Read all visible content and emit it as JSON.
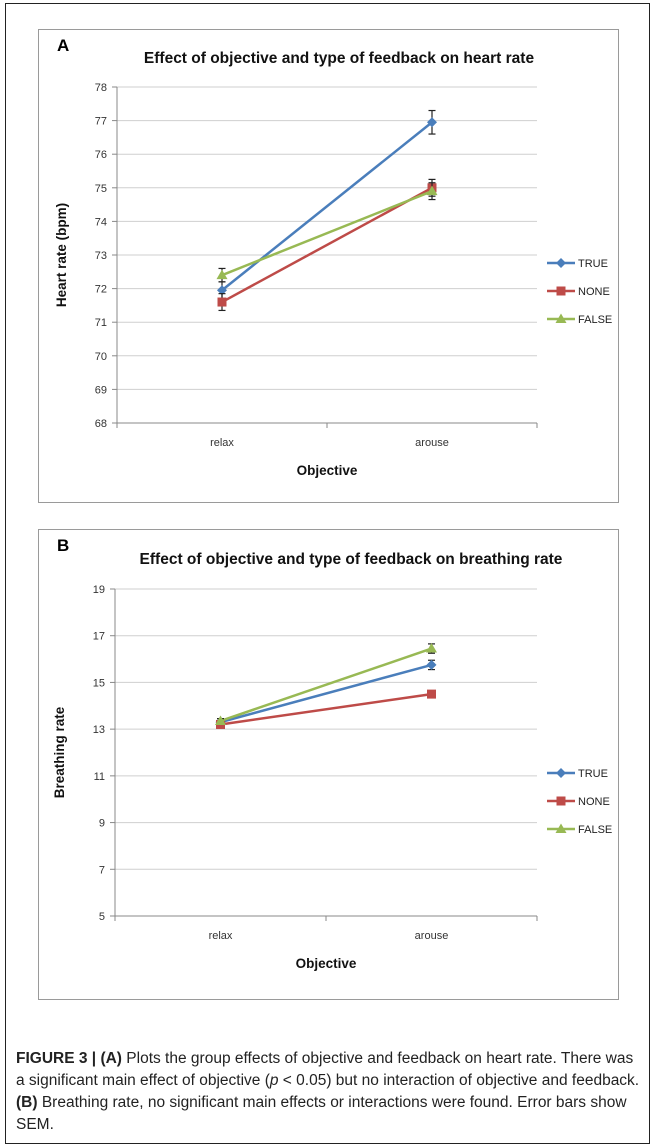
{
  "caption": {
    "label": "FIGURE 3 |",
    "a_tag": "(A)",
    "a_text_1": "Plots the group effects of objective and feedback on heart rate. There was a significant main effect of objective (",
    "a_p": "p",
    "a_text_2": " < 0.05) but no interaction of objective and feedback.",
    "b_tag": "(B)",
    "b_text": "Breathing rate, no significant main effects or interactions were found. Error bars show SEM."
  },
  "chart_data": [
    {
      "panel": "A",
      "type": "line",
      "title": "Effect of objective and type of feedback on heart rate",
      "xlabel": "Objective",
      "ylabel": "Heart rate (bpm)",
      "categories": [
        "relax",
        "arouse"
      ],
      "ylim": [
        68,
        78
      ],
      "yticks": [
        "68",
        "69",
        "70",
        "71",
        "72",
        "73",
        "74",
        "75",
        "76",
        "77",
        "78"
      ],
      "grid": true,
      "legend_position": "right",
      "series": [
        {
          "name": "TRUE",
          "color": "#4a7ebb",
          "marker": "diamond",
          "values": [
            71.95,
            76.95
          ],
          "error": [
            0.25,
            0.35
          ]
        },
        {
          "name": "NONE",
          "color": "#be4b48",
          "marker": "square",
          "values": [
            71.6,
            75.0
          ],
          "error": [
            0.25,
            0.25
          ]
        },
        {
          "name": "FALSE",
          "color": "#98b954",
          "marker": "triangle",
          "values": [
            72.4,
            74.9
          ],
          "error": [
            0.2,
            0.25
          ]
        }
      ]
    },
    {
      "panel": "B",
      "type": "line",
      "title": "Effect of objective and type of feedback on breathing rate",
      "xlabel": "Objective",
      "ylabel": "Breathing rate",
      "categories": [
        "relax",
        "arouse"
      ],
      "ylim": [
        5,
        19
      ],
      "yticks": [
        "5",
        "7",
        "9",
        "11",
        "13",
        "15",
        "17",
        "19"
      ],
      "grid": true,
      "legend_position": "right",
      "series": [
        {
          "name": "TRUE",
          "color": "#4a7ebb",
          "marker": "diamond",
          "values": [
            13.3,
            15.75
          ],
          "error": [
            0.15,
            0.2
          ]
        },
        {
          "name": "NONE",
          "color": "#be4b48",
          "marker": "square",
          "values": [
            13.2,
            14.5
          ],
          "error": [
            0.1,
            0.1
          ]
        },
        {
          "name": "FALSE",
          "color": "#98b954",
          "marker": "triangle",
          "values": [
            13.35,
            16.45
          ],
          "error": [
            0.1,
            0.2
          ]
        }
      ]
    }
  ]
}
